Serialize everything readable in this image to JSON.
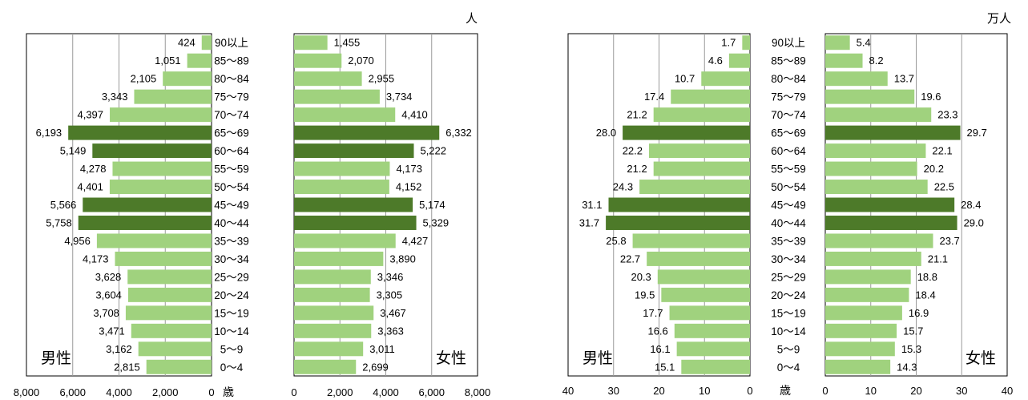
{
  "chart_data": [
    {
      "type": "bar",
      "orientation": "horizontal",
      "subtype": "population-pyramid",
      "unit": "人",
      "age_axis_label": "歳",
      "age_groups": [
        "90以上",
        "85～89",
        "80～84",
        "75～79",
        "70～74",
        "65～69",
        "60～64",
        "55～59",
        "50～54",
        "45～49",
        "40～44",
        "35～39",
        "30～34",
        "25～29",
        "20～24",
        "15～19",
        "10～14",
        "5～9",
        "0～4"
      ],
      "xlim": [
        0,
        8000
      ],
      "ticks": [
        8000,
        6000,
        4000,
        2000,
        0
      ],
      "tick_labels_left": [
        "8,000",
        "6,000",
        "4,000",
        "2,000",
        "0"
      ],
      "tick_labels_right": [
        "0",
        "2,000",
        "4,000",
        "6,000",
        "8,000"
      ],
      "grid": true,
      "highlight_groups": [
        "65～69",
        "60～64",
        "45～49",
        "40～44"
      ],
      "colors": {
        "normal": "#a0d27e",
        "highlight": "#4d7a29"
      },
      "series": [
        {
          "name": "男性",
          "values": [
            424,
            1051,
            2105,
            3343,
            4397,
            6193,
            5149,
            4278,
            4401,
            5566,
            5758,
            4956,
            4173,
            3628,
            3604,
            3708,
            3471,
            3162,
            2815
          ],
          "labels": [
            "424",
            "1,051",
            "2,105",
            "3,343",
            "4,397",
            "6,193",
            "5,149",
            "4,278",
            "4,401",
            "5,566",
            "5,758",
            "4,956",
            "4,173",
            "3,628",
            "3,604",
            "3,708",
            "3,471",
            "3,162",
            "2,815"
          ]
        },
        {
          "name": "女性",
          "values": [
            1455,
            2070,
            2955,
            3734,
            4410,
            6332,
            5222,
            4173,
            4152,
            5174,
            5329,
            4427,
            3890,
            3346,
            3305,
            3467,
            3363,
            3011,
            2699
          ],
          "labels": [
            "1,455",
            "2,070",
            "2,955",
            "3,734",
            "4,410",
            "6,332",
            "5,222",
            "4,173",
            "4,152",
            "5,174",
            "5,329",
            "4,427",
            "3,890",
            "3,346",
            "3,305",
            "3,467",
            "3,363",
            "3,011",
            "2,699"
          ]
        }
      ]
    },
    {
      "type": "bar",
      "orientation": "horizontal",
      "subtype": "population-pyramid",
      "unit": "万人",
      "age_axis_label": "歳",
      "age_groups": [
        "90以上",
        "85～89",
        "80～84",
        "75～79",
        "70～74",
        "65～69",
        "60～64",
        "55～59",
        "50～54",
        "45～49",
        "40～44",
        "35～39",
        "30～34",
        "25～29",
        "20～24",
        "15～19",
        "10～14",
        "5～9",
        "0～4"
      ],
      "xlim": [
        0,
        40
      ],
      "ticks": [
        40,
        30,
        20,
        10,
        0
      ],
      "tick_labels_left": [
        "40",
        "30",
        "20",
        "10",
        "0"
      ],
      "tick_labels_right": [
        "0",
        "10",
        "20",
        "30",
        "40"
      ],
      "grid": true,
      "highlight_groups": [
        "65～69",
        "45～49",
        "40～44"
      ],
      "colors": {
        "normal": "#a0d27e",
        "highlight": "#4d7a29"
      },
      "series": [
        {
          "name": "男性",
          "values": [
            1.7,
            4.6,
            10.7,
            17.4,
            21.2,
            28.0,
            22.2,
            21.2,
            24.3,
            31.1,
            31.7,
            25.8,
            22.7,
            20.3,
            19.5,
            17.7,
            16.6,
            16.1,
            15.1
          ],
          "labels": [
            "1.7",
            "4.6",
            "10.7",
            "17.4",
            "21.2",
            "28.0",
            "22.2",
            "21.2",
            "24.3",
            "31.1",
            "31.7",
            "25.8",
            "22.7",
            "20.3",
            "19.5",
            "17.7",
            "16.6",
            "16.1",
            "15.1"
          ]
        },
        {
          "name": "女性",
          "values": [
            5.4,
            8.2,
            13.7,
            19.6,
            23.3,
            29.7,
            22.1,
            20.2,
            22.5,
            28.4,
            29.0,
            23.7,
            21.1,
            18.8,
            18.4,
            16.9,
            15.7,
            15.3,
            14.3
          ],
          "labels": [
            "5.4",
            "8.2",
            "13.7",
            "19.6",
            "23.3",
            "29.7",
            "22.1",
            "20.2",
            "22.5",
            "28.4",
            "29.0",
            "23.7",
            "21.1",
            "18.8",
            "18.4",
            "16.9",
            "15.7",
            "15.3",
            "14.3"
          ]
        }
      ]
    }
  ]
}
